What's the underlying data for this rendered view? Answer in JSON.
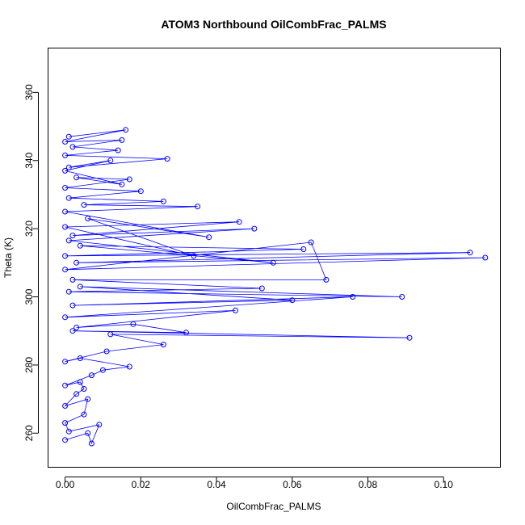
{
  "chart_data": {
    "type": "scatter",
    "title": "ATOM3 Northbound OilCombFrac_PALMS",
    "xlabel": "OilCombFrac_PALMS",
    "ylabel": "Theta (K)",
    "xlim": [
      -0.0045,
      0.115
    ],
    "ylim": [
      250,
      373
    ],
    "xticks": [
      0.0,
      0.02,
      0.04,
      0.06,
      0.08,
      0.1
    ],
    "xtick_labels": [
      "0.00",
      "0.02",
      "0.04",
      "0.06",
      "0.08",
      "0.10"
    ],
    "yticks": [
      260,
      280,
      300,
      320,
      340,
      360
    ],
    "ytick_labels": [
      "260",
      "280",
      "300",
      "320",
      "340",
      "360"
    ],
    "grid": false,
    "legend": "none",
    "series_color": "#0000FF",
    "marker": "open-circle",
    "connected": true,
    "series": [
      {
        "values": [
          [
            0.0,
            258.0
          ],
          [
            0.006,
            260.0
          ],
          [
            0.007,
            257.0
          ],
          [
            0.009,
            262.5
          ],
          [
            0.001,
            260.5
          ],
          [
            0.0,
            263.0
          ],
          [
            0.005,
            265.5
          ],
          [
            0.006,
            270.0
          ],
          [
            0.0,
            268.0
          ],
          [
            0.003,
            271.5
          ],
          [
            0.005,
            273.0
          ],
          [
            0.004,
            275.0
          ],
          [
            0.0,
            274.0
          ],
          [
            0.007,
            277.0
          ],
          [
            0.01,
            278.5
          ],
          [
            0.017,
            279.5
          ],
          [
            0.004,
            282.0
          ],
          [
            0.0,
            281.0
          ],
          [
            0.011,
            284.0
          ],
          [
            0.026,
            286.0
          ],
          [
            0.012,
            289.0
          ],
          [
            0.091,
            288.0
          ],
          [
            0.002,
            290.0
          ],
          [
            0.032,
            289.5
          ],
          [
            0.018,
            292.0
          ],
          [
            0.003,
            291.0
          ],
          [
            0.045,
            296.0
          ],
          [
            0.0,
            294.0
          ],
          [
            0.076,
            300.0
          ],
          [
            0.002,
            297.5
          ],
          [
            0.06,
            299.0
          ],
          [
            0.004,
            303.0
          ],
          [
            0.089,
            300.0
          ],
          [
            0.001,
            301.5
          ],
          [
            0.052,
            302.5
          ],
          [
            0.002,
            305.0
          ],
          [
            0.069,
            305.0
          ],
          [
            0.065,
            316.0
          ],
          [
            0.0,
            308.0
          ],
          [
            0.111,
            311.5
          ],
          [
            0.003,
            310.0
          ],
          [
            0.107,
            313.0
          ],
          [
            0.0,
            312.0
          ],
          [
            0.063,
            314.0
          ],
          [
            0.004,
            315.0
          ],
          [
            0.055,
            310.0
          ],
          [
            0.001,
            316.5
          ],
          [
            0.05,
            320.0
          ],
          [
            0.002,
            318.0
          ],
          [
            0.046,
            322.0
          ],
          [
            0.0,
            320.5
          ],
          [
            0.034,
            312.0
          ],
          [
            0.006,
            323.0
          ],
          [
            0.038,
            317.5
          ],
          [
            0.0,
            325.0
          ],
          [
            0.035,
            326.5
          ],
          [
            0.005,
            327.0
          ],
          [
            0.026,
            328.0
          ],
          [
            0.001,
            329.0
          ],
          [
            0.02,
            331.0
          ],
          [
            0.0,
            332.0
          ],
          [
            0.017,
            334.5
          ],
          [
            0.003,
            335.0
          ],
          [
            0.015,
            333.0
          ],
          [
            0.0,
            337.0
          ],
          [
            0.012,
            340.0
          ],
          [
            0.001,
            338.0
          ],
          [
            0.027,
            340.5
          ],
          [
            0.0,
            341.5
          ],
          [
            0.014,
            343.0
          ],
          [
            0.002,
            344.0
          ],
          [
            0.015,
            346.0
          ],
          [
            0.0,
            345.5
          ],
          [
            0.016,
            349.0
          ],
          [
            0.001,
            347.0
          ]
        ]
      }
    ]
  }
}
